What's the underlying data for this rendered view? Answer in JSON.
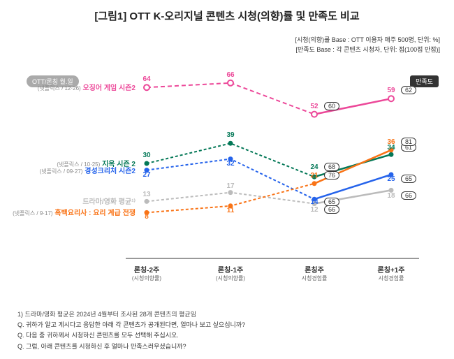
{
  "title": "[그림1] OTT K-오리지널 콘텐츠 시청(의향)률 및 만족도 비교",
  "base_notes": {
    "line1": "[시청(의향)률 Base : OTT 이용자 매주 500명, 단위: %]",
    "line2": "[만족도 Base : 각 콘텐츠 시청자, 단위: 점(100점 만점)]"
  },
  "badge_left": "OTT/론칭 월.일",
  "badge_right": "만족도",
  "layout": {
    "x_positions": [
      210,
      330,
      450,
      560
    ],
    "y_base": 330,
    "y_scale": 3.2,
    "label_right_edge": 194,
    "satis_offset_x": 14
  },
  "x_axis": [
    {
      "label": "론칭-2주",
      "sub": "(시청의향률)"
    },
    {
      "label": "론칭-1주",
      "sub": "(시청의향률)"
    },
    {
      "label": "론칭주",
      "sub": "시청경험률"
    },
    {
      "label": "론칭+1주",
      "sub": "시청경험률"
    }
  ],
  "series": [
    {
      "name": "오징어 게임 시즌2",
      "sub": "(넷플릭스 / 12·26)",
      "color": "#ec4899",
      "values": [
        64,
        66,
        52,
        59
      ],
      "satisfaction": [
        null,
        null,
        60,
        62
      ],
      "marker": "open",
      "dash": "6,4",
      "solid_from": 2,
      "label_offset_y": [
        -6,
        -6,
        -6,
        -6
      ]
    },
    {
      "name": "지옥 시즌 2",
      "sub": "(넷플릭스 / 10·25)",
      "color": "#047857",
      "values": [
        30,
        39,
        24,
        34
      ],
      "satisfaction": [
        null,
        null,
        68,
        61
      ],
      "marker": "solid",
      "dash": "4,3",
      "solid_from": 2,
      "label_offset_y": [
        -6,
        -6,
        -8,
        -4
      ]
    },
    {
      "name": "경성크리처 시즌2",
      "sub": "(넷플릭스 / 09·27)",
      "color": "#2563eb",
      "values": [
        27,
        32,
        14,
        25
      ],
      "satisfaction": [
        null,
        null,
        65,
        65
      ],
      "marker": "solid",
      "dash": "4,3",
      "solid_from": 2,
      "label_offset_y": [
        12,
        12,
        10,
        12
      ]
    },
    {
      "name": "드라마/영화 평균¹⁾",
      "sub": "",
      "color": "#bbbbbb",
      "values": [
        13,
        17,
        12,
        18
      ],
      "satisfaction": [
        null,
        null,
        66,
        66
      ],
      "marker": "solid",
      "dash": "4,3",
      "solid_from": 2,
      "label_offset_y": [
        -4,
        -4,
        14,
        14
      ],
      "label_color": "#bbbbbb"
    },
    {
      "name": "흑백요리사 : 요리 계급 전쟁",
      "sub": "(넷플릭스 / 9·17)",
      "color": "#f97316",
      "values": [
        8,
        11,
        21,
        36
      ],
      "satisfaction": [
        null,
        null,
        76,
        81
      ],
      "marker": "solid",
      "dash": "4,3",
      "solid_from": 2,
      "label_offset_y": [
        12,
        12,
        -6,
        -6
      ]
    }
  ],
  "footnotes": {
    "note1": "1) 드라마/영화 평균은 2024년 4월부터 조사된 28개 콘텐츠의 평균임",
    "q1": "Q. 귀하가 알고 계시다고 응답한 아래 각 콘텐츠가 공개된다면, 얼마나 보고 싶으십니까?",
    "q2": "Q. 다음 중 귀하께서 시청하신 콘텐츠를 모두 선택해 주십시오.",
    "q3": "Q. 그럼, 아래 콘텐츠를 시청하신 후 얼마나 만족스러우셨습니까?"
  }
}
